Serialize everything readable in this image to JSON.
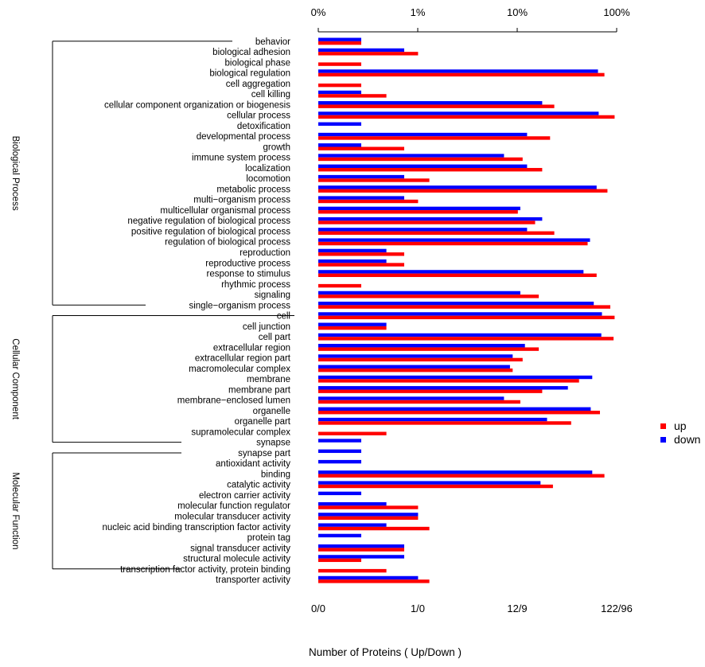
{
  "chart_data": {
    "type": "bar",
    "orientation": "horizontal",
    "scale": "log",
    "top_axis_ticks": [
      "0%",
      "1%",
      "10%",
      "100%"
    ],
    "bottom_axis_ticks": [
      "0/0",
      "1/0",
      "12/9",
      "122/96"
    ],
    "xlabel": "Number of Proteins ( Up/Down )",
    "legend": {
      "position": "top-right",
      "entries": [
        {
          "name": "up",
          "color": "#ff0000"
        },
        {
          "name": "down",
          "color": "#0000ff"
        }
      ]
    },
    "colors": {
      "up": "#ff0000",
      "down": "#0000ff"
    },
    "groups": [
      {
        "name": "Biological Process",
        "start": 0,
        "end": 25
      },
      {
        "name": "Cellular Component",
        "start": 26,
        "end": 38
      },
      {
        "name": "Molecular Function",
        "start": 39,
        "end": 50
      }
    ],
    "categories": [
      "behavior",
      "biological adhesion",
      "biological phase",
      "biological regulation",
      "cell aggregation",
      "cell killing",
      "cellular component organization or biogenesis",
      "cellular process",
      "detoxification",
      "developmental process",
      "growth",
      "immune system process",
      "localization",
      "locomotion",
      "metabolic process",
      "multi−organism process",
      "multicellular organismal process",
      "negative regulation of biological process",
      "positive regulation of biological process",
      "regulation of biological process",
      "reproduction",
      "reproductive process",
      "response to stimulus",
      "rhythmic process",
      "signaling",
      "single−organism process",
      "cell",
      "cell junction",
      "cell part",
      "extracellular region",
      "extracellular region part",
      "macromolecular complex",
      "membrane",
      "membrane part",
      "membrane−enclosed lumen",
      "organelle",
      "organelle part",
      "supramolecular complex",
      "synapse",
      "synapse part",
      "antioxidant activity",
      "binding",
      "catalytic activity",
      "electron carrier activity",
      "molecular function regulator",
      "molecular transducer activity",
      "nucleic acid binding transcription factor activity",
      "protein tag",
      "signal transducer activity",
      "structural molecule activity",
      "transcription factor activity, protein binding",
      "transporter activity"
    ],
    "series": [
      {
        "name": "up",
        "values": [
          1,
          4,
          1,
          100,
          1,
          2,
          44,
          118,
          0,
          41,
          3,
          26,
          36,
          5,
          105,
          4,
          24,
          32,
          44,
          76,
          3,
          3,
          88,
          1,
          34,
          110,
          118,
          2,
          116,
          34,
          26,
          22,
          66,
          36,
          25,
          93,
          58,
          2,
          0,
          0,
          0,
          100,
          43,
          0,
          4,
          4,
          5,
          0,
          3,
          1,
          2,
          5
        ]
      },
      {
        "name": "down",
        "values": [
          1,
          3,
          0,
          90,
          0,
          1,
          36,
          91,
          1,
          28,
          1,
          19,
          28,
          3,
          88,
          3,
          25,
          36,
          28,
          79,
          2,
          2,
          71,
          0,
          25,
          84,
          96,
          2,
          95,
          27,
          22,
          21,
          82,
          55,
          19,
          80,
          39,
          0,
          1,
          1,
          1,
          82,
          35,
          1,
          2,
          4,
          2,
          1,
          3,
          3,
          0,
          4
        ]
      }
    ]
  }
}
